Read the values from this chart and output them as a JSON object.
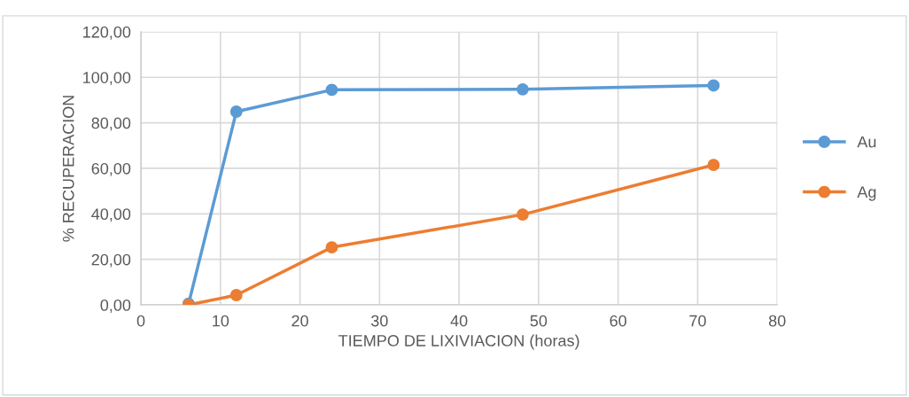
{
  "chart_data": {
    "type": "line",
    "xlabel": "TIEMPO DE LIXIVIACION (horas)",
    "ylabel": "% RECUPERACION",
    "x": [
      6,
      12,
      24,
      48,
      72
    ],
    "series": [
      {
        "name": "Au",
        "color": "#5b9bd5",
        "values": [
          0.5,
          84.9,
          94.5,
          94.7,
          96.4
        ]
      },
      {
        "name": "Ag",
        "color": "#ed7d31",
        "values": [
          0.0,
          4.3,
          25.3,
          39.7,
          61.5
        ]
      }
    ],
    "xlim": [
      0,
      80
    ],
    "xticks": [
      0,
      10,
      20,
      30,
      40,
      50,
      60,
      70,
      80
    ],
    "ylim": [
      0,
      120
    ],
    "yticks": [
      {
        "value": 0,
        "label": "0,00"
      },
      {
        "value": 20,
        "label": "20,00"
      },
      {
        "value": 40,
        "label": "40,00"
      },
      {
        "value": 60,
        "label": "60,00"
      },
      {
        "value": 80,
        "label": "80,00"
      },
      {
        "value": 100,
        "label": "100,00"
      },
      {
        "value": 120,
        "label": "120,00"
      }
    ],
    "grid": true,
    "legend": "right",
    "marker": "circle",
    "line_style": "solid"
  }
}
